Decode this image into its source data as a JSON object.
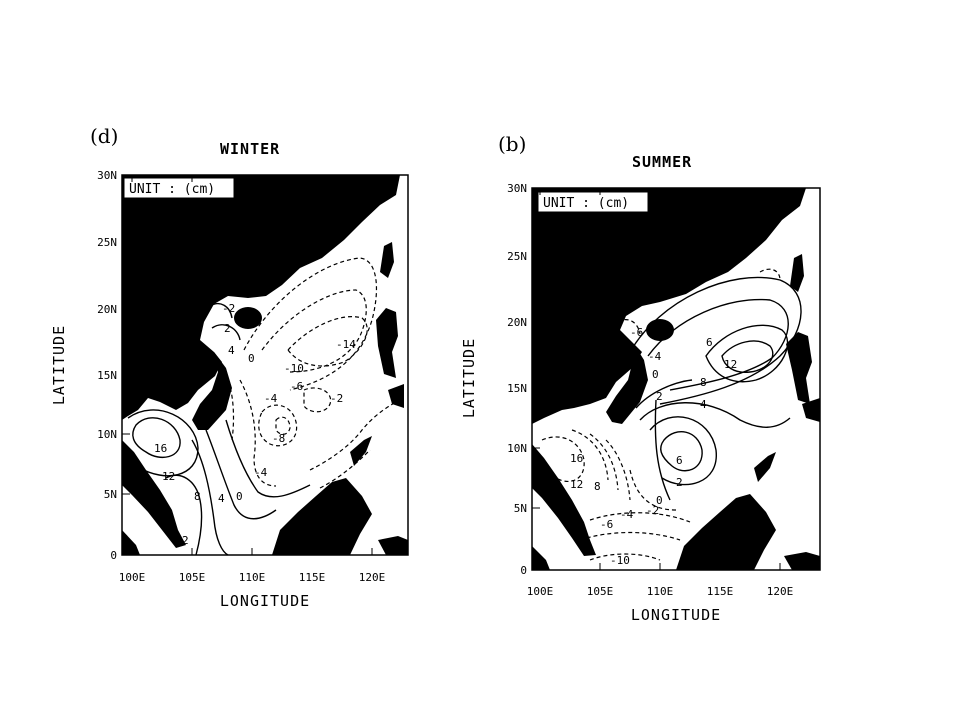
{
  "panels": [
    {
      "letter": "(d)",
      "season": "WINTER",
      "unit_label": "UNIT : (cm)",
      "lat_ticks": [
        "30N",
        "25N",
        "20N",
        "15N",
        "10N",
        "5N",
        "0"
      ],
      "lon_ticks": [
        "100E",
        "105E",
        "110E",
        "115E",
        "120E"
      ],
      "xlabel": "LONGITUDE",
      "ylabel": "LATITUDE",
      "contour_labels": [
        "-2",
        "2",
        "4",
        "0",
        "-6",
        "-10",
        "-14",
        "-4",
        "-2",
        "-8",
        "-4",
        "16",
        "12",
        "8",
        "4",
        "0",
        "2"
      ]
    },
    {
      "letter": "(b)",
      "season": "SUMMER",
      "unit_label": "UNIT : (cm)",
      "lat_ticks": [
        "30N",
        "25N",
        "20N",
        "15N",
        "10N",
        "5N",
        "0"
      ],
      "lon_ticks": [
        "100E",
        "105E",
        "110E",
        "115E",
        "120E"
      ],
      "xlabel": "LONGITUDE",
      "ylabel": "LATITUDE",
      "contour_labels": [
        "-6",
        "-4",
        "0",
        "6",
        "12",
        "8",
        "4",
        "2",
        "16",
        "12",
        "8",
        "6",
        "2",
        "0",
        "-4",
        "-2",
        "-6",
        "-10"
      ]
    }
  ]
}
